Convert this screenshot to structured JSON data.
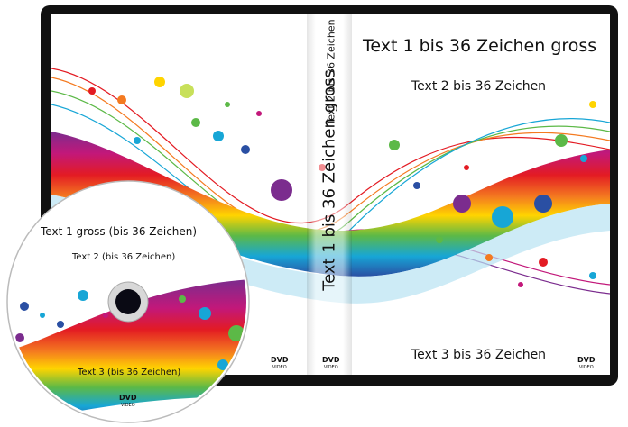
{
  "cover": {
    "title": "Text 1 bis 36 Zeichen gross",
    "subtitle": "Text 2 bis 36 Zeichen",
    "footer": "Text 3 bis 36 Zeichen"
  },
  "spine": {
    "main_text": "Text 1 bis 36 Zeichen gross",
    "small_text": "Text 2 bis 36 Zeichen"
  },
  "disc": {
    "title": "Text 1 gross (bis 36 Zeichen)",
    "subtitle": "Text 2 (bis 36 Zeichen)",
    "footer": "Text 3 (bis 36 Zeichen)"
  },
  "logo": {
    "mark": "DVD",
    "sub": "VIDEO"
  },
  "colors": {
    "case": "#111111",
    "rainbow": [
      "#e31b23",
      "#f47a20",
      "#ffd400",
      "#5cb947",
      "#17a6d6",
      "#2a4fa3",
      "#7b2c8e",
      "#c2187a"
    ]
  }
}
